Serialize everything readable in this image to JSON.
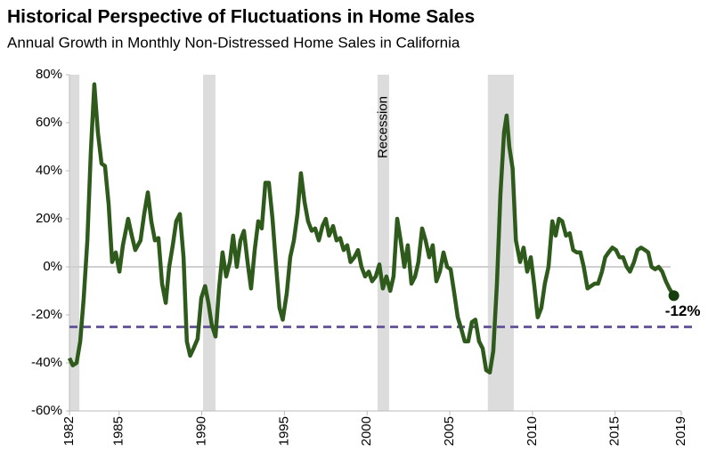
{
  "chart_data": {
    "type": "line",
    "title": "Historical Perspective of Fluctuations in Home Sales",
    "subtitle": "Annual Growth in Monthly Non-Distressed Home Sales in California",
    "x": [
      1982.0,
      1982.2,
      1982.43,
      1982.65,
      1982.86,
      1983.08,
      1983.29,
      1983.5,
      1983.72,
      1983.94,
      1984.15,
      1984.37,
      1984.58,
      1984.8,
      1985.02,
      1985.23,
      1985.55,
      1985.77,
      1985.98,
      1986.3,
      1986.52,
      1986.74,
      1986.95,
      1987.17,
      1987.38,
      1987.6,
      1987.82,
      1988.03,
      1988.25,
      1988.46,
      1988.68,
      1988.9,
      1989.1,
      1989.3,
      1989.5,
      1989.75,
      1989.97,
      1990.2,
      1990.4,
      1990.6,
      1990.83,
      1991.05,
      1991.26,
      1991.48,
      1991.7,
      1991.9,
      1992.12,
      1992.34,
      1992.55,
      1992.77,
      1992.98,
      1993.2,
      1993.42,
      1993.63,
      1993.85,
      1994.06,
      1994.28,
      1994.5,
      1994.7,
      1994.9,
      1995.14,
      1995.35,
      1995.57,
      1995.79,
      1996.0,
      1996.22,
      1996.43,
      1996.65,
      1996.86,
      1997.08,
      1997.3,
      1997.5,
      1997.7,
      1997.94,
      1998.15,
      1998.37,
      1998.58,
      1998.8,
      1999.0,
      1999.23,
      1999.45,
      1999.66,
      1999.88,
      2000.1,
      2000.3,
      2000.52,
      2000.74,
      2000.95,
      2001.17,
      2001.4,
      2001.6,
      2001.82,
      2002.03,
      2002.25,
      2002.46,
      2002.68,
      2002.9,
      2003.1,
      2003.33,
      2003.54,
      2003.76,
      2003.97,
      2004.19,
      2004.4,
      2004.62,
      2004.84,
      2005.05,
      2005.27,
      2005.48,
      2005.7,
      2005.9,
      2006.12,
      2006.34,
      2006.55,
      2006.77,
      2006.99,
      2007.2,
      2007.42,
      2007.63,
      2007.85,
      2008.06,
      2008.28,
      2008.44,
      2008.6,
      2008.8,
      2009.0,
      2009.25,
      2009.46,
      2009.68,
      2009.9,
      2010.1,
      2010.32,
      2010.54,
      2010.75,
      2010.97,
      2011.2,
      2011.4,
      2011.6,
      2011.8,
      2012.03,
      2012.25,
      2012.46,
      2012.68,
      2012.9,
      2013.1,
      2013.33,
      2013.54,
      2013.76,
      2013.97,
      2014.2,
      2014.4,
      2014.6,
      2014.83,
      2015.05,
      2015.26,
      2015.48,
      2015.7,
      2015.9,
      2016.14,
      2016.35,
      2016.57,
      2016.8,
      2017.0,
      2017.2,
      2017.42,
      2017.63,
      2017.85,
      2018.07,
      2018.28,
      2018.55
    ],
    "series": [
      {
        "color": "#2e5a1c",
        "values": [
          -38,
          -41,
          -40,
          -31,
          -13,
          11,
          48,
          76,
          56,
          43,
          42,
          26,
          2,
          6,
          -2,
          9,
          20,
          13,
          7,
          11,
          22,
          31,
          19,
          11,
          12,
          -7,
          -15,
          0,
          9,
          19,
          22,
          4,
          -31,
          -37,
          -34,
          -30,
          -13,
          -8,
          -15,
          -24,
          -29,
          -9,
          6,
          -4,
          2,
          13,
          0,
          11,
          15,
          2,
          -9,
          7,
          19,
          16,
          35,
          35,
          20,
          0,
          -17,
          -22,
          -11,
          4,
          11,
          22,
          39,
          27,
          19,
          15,
          16,
          11,
          17,
          20,
          13,
          17,
          11,
          12,
          7,
          9,
          2,
          4,
          7,
          0,
          -4,
          -2,
          -6,
          -4,
          1,
          -9,
          -4,
          -10,
          -4,
          20,
          11,
          0,
          9,
          -7,
          -4,
          2,
          16,
          11,
          4,
          9,
          -6,
          -2,
          6,
          0,
          -1,
          -11,
          -21,
          -26,
          -31,
          -31,
          -23,
          -22,
          -31,
          -34,
          -43,
          -44,
          -35,
          -7,
          30,
          56,
          63,
          50,
          41,
          11,
          2,
          8,
          -2,
          4,
          -7,
          -21,
          -17,
          -7,
          0,
          19,
          13,
          20,
          19,
          13,
          14,
          7,
          6,
          6,
          0,
          -9,
          -8,
          -7,
          -7,
          -2,
          4,
          6,
          8,
          7,
          4,
          4,
          0,
          -2,
          2,
          7,
          8,
          7,
          6,
          0,
          -1,
          0,
          -2,
          -6,
          -9,
          -12
        ]
      }
    ],
    "end_annotation": {
      "x": 2018.55,
      "value": -12,
      "label": "-12%"
    },
    "reference_line": {
      "value": -25,
      "color": "#6a5a9c"
    },
    "recessions": [
      [
        1982.0,
        1982.6
      ],
      [
        1990.08,
        1990.83
      ],
      [
        2000.63,
        2001.33
      ],
      [
        2007.3,
        2008.87
      ]
    ],
    "recession_label": "Recession",
    "xlim": [
      1982,
      2019
    ],
    "xticks": [
      1982,
      1985,
      1990,
      1995,
      2000,
      2005,
      2010,
      2015,
      2019
    ],
    "ylim": [
      -60,
      80
    ],
    "yticks": [
      {
        "value": -60,
        "label": "-60%"
      },
      {
        "value": -40,
        "label": "-40%"
      },
      {
        "value": -20,
        "label": "-20%"
      },
      {
        "value": 0,
        "label": "0%"
      },
      {
        "value": 20,
        "label": "20%"
      },
      {
        "value": 40,
        "label": "40%"
      },
      {
        "value": 60,
        "label": "60%"
      },
      {
        "value": 80,
        "label": "80%"
      }
    ]
  }
}
